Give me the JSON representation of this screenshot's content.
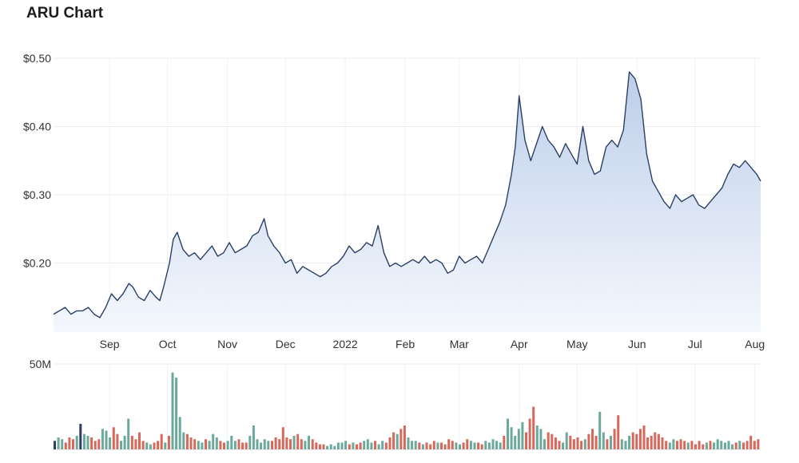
{
  "title": "ARU Chart",
  "colors": {
    "line": "#2b3f66",
    "area_top": "#b9cbe8",
    "area_bottom": "#f3f7fd",
    "grid": "#e8ebf0",
    "volume_up": "#6aa99b",
    "volume_down": "#d9685b",
    "volume_flat": "#2b3f66"
  },
  "chart_data": [
    {
      "type": "area",
      "title": "ARU Chart",
      "xlabel": "",
      "ylabel": "",
      "grid": true,
      "x_start": "2021-08-03",
      "x_end": "2022-08-04",
      "xlim": [
        "2021-08-03",
        "2022-08-04"
      ],
      "ylim": [
        0.1,
        0.5
      ],
      "y_ticks": [
        {
          "value": 0.5,
          "label": "$0.50"
        },
        {
          "value": 0.4,
          "label": "$0.40"
        },
        {
          "value": 0.3,
          "label": "$0.30"
        },
        {
          "value": 0.2,
          "label": "$0.20"
        }
      ],
      "x_ticks": [
        {
          "date": "2021-09-01",
          "label": "Sep"
        },
        {
          "date": "2021-10-01",
          "label": "Oct"
        },
        {
          "date": "2021-11-01",
          "label": "Nov"
        },
        {
          "date": "2021-12-01",
          "label": "Dec"
        },
        {
          "date": "2022-01-01",
          "label": "2022"
        },
        {
          "date": "2022-02-01",
          "label": "Feb"
        },
        {
          "date": "2022-03-01",
          "label": "Mar"
        },
        {
          "date": "2022-04-01",
          "label": "Apr"
        },
        {
          "date": "2022-05-01",
          "label": "May"
        },
        {
          "date": "2022-06-01",
          "label": "Jun"
        },
        {
          "date": "2022-07-01",
          "label": "Jul"
        },
        {
          "date": "2022-08-01",
          "label": "Aug"
        }
      ],
      "series": [
        {
          "points": [
            [
              "2021-08-03",
              0.125
            ],
            [
              "2021-08-06",
              0.13
            ],
            [
              "2021-08-09",
              0.135
            ],
            [
              "2021-08-12",
              0.125
            ],
            [
              "2021-08-15",
              0.13
            ],
            [
              "2021-08-18",
              0.13
            ],
            [
              "2021-08-21",
              0.135
            ],
            [
              "2021-08-24",
              0.125
            ],
            [
              "2021-08-27",
              0.12
            ],
            [
              "2021-08-30",
              0.135
            ],
            [
              "2021-09-02",
              0.155
            ],
            [
              "2021-09-05",
              0.145
            ],
            [
              "2021-09-08",
              0.155
            ],
            [
              "2021-09-11",
              0.17
            ],
            [
              "2021-09-13",
              0.165
            ],
            [
              "2021-09-16",
              0.15
            ],
            [
              "2021-09-19",
              0.145
            ],
            [
              "2021-09-22",
              0.16
            ],
            [
              "2021-09-25",
              0.15
            ],
            [
              "2021-09-27",
              0.145
            ],
            [
              "2021-09-29",
              0.165
            ],
            [
              "2021-10-02",
              0.2
            ],
            [
              "2021-10-04",
              0.235
            ],
            [
              "2021-10-06",
              0.245
            ],
            [
              "2021-10-09",
              0.22
            ],
            [
              "2021-10-12",
              0.21
            ],
            [
              "2021-10-15",
              0.215
            ],
            [
              "2021-10-18",
              0.205
            ],
            [
              "2021-10-21",
              0.215
            ],
            [
              "2021-10-24",
              0.225
            ],
            [
              "2021-10-27",
              0.21
            ],
            [
              "2021-10-30",
              0.215
            ],
            [
              "2021-11-02",
              0.23
            ],
            [
              "2021-11-05",
              0.215
            ],
            [
              "2021-11-08",
              0.22
            ],
            [
              "2021-11-11",
              0.225
            ],
            [
              "2021-11-14",
              0.24
            ],
            [
              "2021-11-17",
              0.245
            ],
            [
              "2021-11-20",
              0.265
            ],
            [
              "2021-11-22",
              0.24
            ],
            [
              "2021-11-25",
              0.225
            ],
            [
              "2021-11-28",
              0.215
            ],
            [
              "2021-12-01",
              0.2
            ],
            [
              "2021-12-04",
              0.205
            ],
            [
              "2021-12-07",
              0.185
            ],
            [
              "2021-12-10",
              0.195
            ],
            [
              "2021-12-13",
              0.19
            ],
            [
              "2021-12-16",
              0.185
            ],
            [
              "2021-12-19",
              0.18
            ],
            [
              "2021-12-22",
              0.185
            ],
            [
              "2021-12-25",
              0.195
            ],
            [
              "2021-12-28",
              0.2
            ],
            [
              "2021-12-31",
              0.21
            ],
            [
              "2022-01-03",
              0.225
            ],
            [
              "2022-01-06",
              0.215
            ],
            [
              "2022-01-09",
              0.22
            ],
            [
              "2022-01-12",
              0.23
            ],
            [
              "2022-01-15",
              0.225
            ],
            [
              "2022-01-18",
              0.255
            ],
            [
              "2022-01-21",
              0.215
            ],
            [
              "2022-01-24",
              0.195
            ],
            [
              "2022-01-27",
              0.2
            ],
            [
              "2022-01-30",
              0.195
            ],
            [
              "2022-02-02",
              0.2
            ],
            [
              "2022-02-05",
              0.205
            ],
            [
              "2022-02-08",
              0.2
            ],
            [
              "2022-02-11",
              0.21
            ],
            [
              "2022-02-14",
              0.2
            ],
            [
              "2022-02-17",
              0.205
            ],
            [
              "2022-02-20",
              0.2
            ],
            [
              "2022-02-23",
              0.185
            ],
            [
              "2022-02-26",
              0.19
            ],
            [
              "2022-03-01",
              0.21
            ],
            [
              "2022-03-04",
              0.2
            ],
            [
              "2022-03-07",
              0.205
            ],
            [
              "2022-03-10",
              0.21
            ],
            [
              "2022-03-13",
              0.2
            ],
            [
              "2022-03-16",
              0.22
            ],
            [
              "2022-03-19",
              0.24
            ],
            [
              "2022-03-22",
              0.26
            ],
            [
              "2022-03-25",
              0.285
            ],
            [
              "2022-03-28",
              0.33
            ],
            [
              "2022-03-30",
              0.37
            ],
            [
              "2022-04-01",
              0.445
            ],
            [
              "2022-04-04",
              0.38
            ],
            [
              "2022-04-07",
              0.35
            ],
            [
              "2022-04-10",
              0.375
            ],
            [
              "2022-04-13",
              0.4
            ],
            [
              "2022-04-16",
              0.38
            ],
            [
              "2022-04-19",
              0.37
            ],
            [
              "2022-04-22",
              0.355
            ],
            [
              "2022-04-25",
              0.375
            ],
            [
              "2022-04-28",
              0.36
            ],
            [
              "2022-05-01",
              0.345
            ],
            [
              "2022-05-04",
              0.4
            ],
            [
              "2022-05-07",
              0.35
            ],
            [
              "2022-05-10",
              0.33
            ],
            [
              "2022-05-13",
              0.335
            ],
            [
              "2022-05-16",
              0.37
            ],
            [
              "2022-05-19",
              0.38
            ],
            [
              "2022-05-22",
              0.37
            ],
            [
              "2022-05-25",
              0.395
            ],
            [
              "2022-05-28",
              0.48
            ],
            [
              "2022-05-31",
              0.47
            ],
            [
              "2022-06-03",
              0.44
            ],
            [
              "2022-06-06",
              0.36
            ],
            [
              "2022-06-09",
              0.32
            ],
            [
              "2022-06-12",
              0.305
            ],
            [
              "2022-06-15",
              0.29
            ],
            [
              "2022-06-18",
              0.28
            ],
            [
              "2022-06-21",
              0.3
            ],
            [
              "2022-06-24",
              0.29
            ],
            [
              "2022-06-27",
              0.295
            ],
            [
              "2022-06-30",
              0.3
            ],
            [
              "2022-07-03",
              0.285
            ],
            [
              "2022-07-06",
              0.28
            ],
            [
              "2022-07-09",
              0.29
            ],
            [
              "2022-07-12",
              0.3
            ],
            [
              "2022-07-15",
              0.31
            ],
            [
              "2022-07-18",
              0.33
            ],
            [
              "2022-07-21",
              0.345
            ],
            [
              "2022-07-24",
              0.34
            ],
            [
              "2022-07-27",
              0.35
            ],
            [
              "2022-07-30",
              0.34
            ],
            [
              "2022-08-02",
              0.33
            ],
            [
              "2022-08-04",
              0.32
            ]
          ]
        }
      ]
    },
    {
      "type": "bar",
      "title": "",
      "grid": true,
      "ylim": [
        0,
        50000000
      ],
      "y_ticks": [
        {
          "value": 50000000,
          "label": "50M"
        }
      ],
      "volume_millions": [
        5.0,
        7.0,
        6.0,
        4.0,
        7.0,
        6.0,
        8.0,
        15.0,
        9.0,
        8.0,
        7.0,
        5.0,
        6.0,
        12.0,
        11.0,
        7.0,
        13.0,
        9.0,
        5.0,
        8.0,
        18.0,
        8.0,
        6.0,
        10.0,
        5.0,
        4.0,
        3.0,
        4.0,
        5.0,
        9.0,
        4.0,
        8.0,
        45.0,
        42.0,
        19.0,
        10.0,
        9.0,
        7.0,
        6.0,
        5.0,
        4.0,
        6.0,
        5.0,
        9.0,
        7.0,
        5.0,
        4.0,
        5.0,
        8.0,
        5.0,
        6.0,
        4.0,
        4.0,
        8.0,
        14.0,
        6.0,
        4.0,
        6.0,
        5.0,
        5.0,
        7.0,
        6.0,
        13.0,
        7.0,
        6.0,
        8.0,
        9.0,
        6.0,
        5.0,
        8.0,
        6.0,
        4.0,
        3.0,
        3.0,
        2.0,
        3.0,
        2.0,
        4.0,
        4.0,
        5.0,
        3.0,
        4.0,
        3.0,
        4.0,
        5.0,
        6.0,
        4.0,
        5.0,
        3.0,
        5.0,
        4.0,
        7.0,
        10.0,
        9.0,
        12.0,
        14.0,
        7.0,
        5.0,
        5.0,
        4.0,
        3.0,
        4.0,
        3.0,
        5.0,
        4.0,
        4.0,
        3.0,
        6.0,
        5.0,
        4.0,
        3.0,
        4.0,
        6.0,
        5.0,
        4.0,
        4.0,
        3.0,
        5.0,
        4.0,
        6.0,
        5.0,
        4.0,
        8.0,
        18.0,
        13.0,
        8.0,
        12.0,
        16.0,
        10.0,
        18.0,
        25.0,
        14.0,
        12.0,
        6.0,
        10.0,
        9.0,
        7.0,
        5.0,
        4.0,
        10.0,
        8.0,
        6.0,
        7.0,
        5.0,
        6.0,
        9.0,
        12.0,
        8.0,
        22.0,
        10.0,
        6.0,
        8.0,
        12.0,
        20.0,
        6.0,
        5.0,
        8.0,
        10.0,
        9.0,
        12.0,
        14.0,
        7.0,
        8.0,
        10.0,
        9.0,
        7.0,
        5.0,
        4.0,
        6.0,
        5.0,
        6.0,
        5.0,
        4.0,
        5.0,
        3.0,
        5.0,
        3.0,
        4.0,
        5.0,
        4.0,
        6.0,
        5.0,
        4.0,
        5.0,
        3.0,
        4.0,
        5.0,
        4.0,
        5.0,
        8.0,
        5.0,
        6.0
      ]
    }
  ]
}
